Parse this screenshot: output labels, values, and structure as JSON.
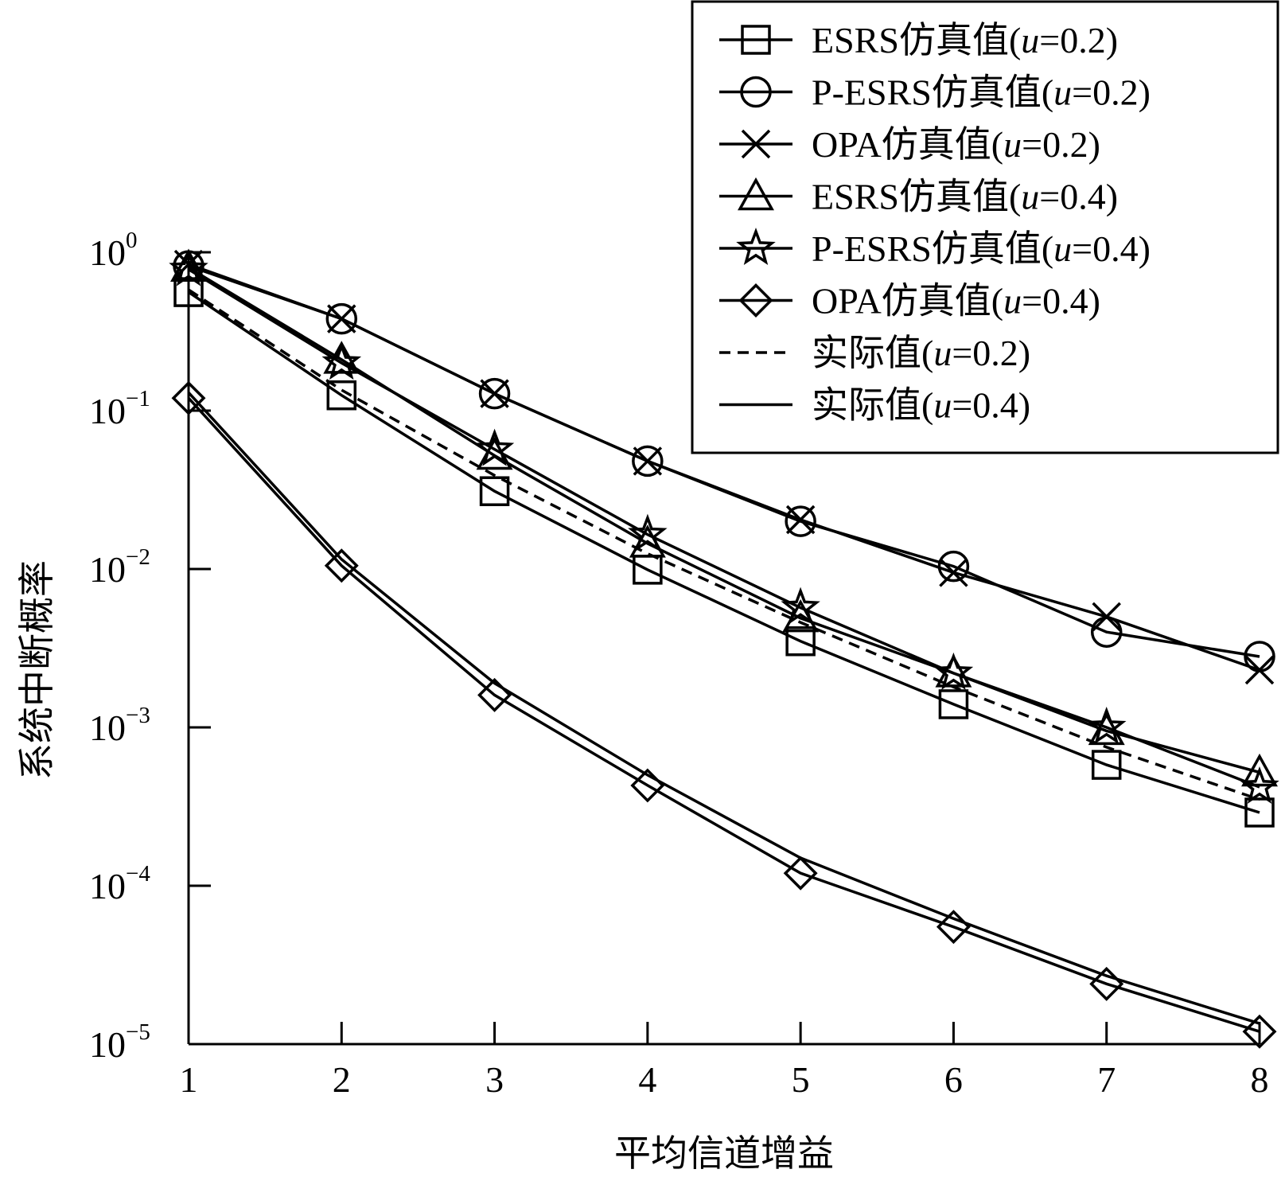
{
  "chart_data": {
    "type": "line",
    "title": "",
    "xlabel": "平均信道增益",
    "ylabel": "系统中断概率",
    "y_scale": "log",
    "xlim": [
      1,
      8
    ],
    "ylim": [
      1e-05,
      1
    ],
    "x_ticks": [
      "1",
      "2",
      "3",
      "4",
      "5",
      "6",
      "7",
      "8"
    ],
    "y_ticks": [
      {
        "value": 1,
        "base": "10",
        "exp": "0"
      },
      {
        "value": 0.1,
        "base": "10",
        "exp": "−1"
      },
      {
        "value": 0.01,
        "base": "10",
        "exp": "−2"
      },
      {
        "value": 0.001,
        "base": "10",
        "exp": "−3"
      },
      {
        "value": 0.0001,
        "base": "10",
        "exp": "−4"
      },
      {
        "value": 1e-05,
        "base": "10",
        "exp": "−5"
      }
    ],
    "grid": false,
    "legend_position": "top-right",
    "x": [
      1,
      2,
      3,
      4,
      5,
      6,
      7,
      8
    ],
    "series": [
      {
        "name": "ESRS仿真值",
        "param": "(u=0.2)",
        "marker": "square",
        "line": "solid",
        "values": [
          0.56,
          0.125,
          0.031,
          0.0099,
          0.0035,
          0.0014,
          0.00058,
          0.00029
        ]
      },
      {
        "name": "P-ESRS仿真值",
        "param": "(u=0.2)",
        "marker": "circle",
        "line": "solid",
        "values": [
          0.82,
          0.38,
          0.128,
          0.048,
          0.02,
          0.0104,
          0.004,
          0.0028
        ]
      },
      {
        "name": "OPA仿真值",
        "param": "(u=0.2)",
        "marker": "x",
        "line": "solid",
        "values": [
          0.84,
          0.38,
          0.128,
          0.048,
          0.0205,
          0.0095,
          0.005,
          0.0023
        ]
      },
      {
        "name": "ESRS仿真值",
        "param": "(u=0.4)",
        "marker": "triangle",
        "line": "solid",
        "values": [
          0.8,
          0.21,
          0.052,
          0.0145,
          0.0049,
          0.0022,
          0.00095,
          0.00052
        ]
      },
      {
        "name": "P-ESRS仿真值",
        "param": "(u=0.4)",
        "marker": "star",
        "line": "solid",
        "values": [
          0.78,
          0.2,
          0.057,
          0.0165,
          0.0057,
          0.0022,
          0.001,
          0.00042
        ]
      },
      {
        "name": "OPA仿真值",
        "param": "(u=0.4)",
        "marker": "diamond",
        "line": "solid",
        "values": [
          0.12,
          0.0105,
          0.0016,
          0.00043,
          0.00012,
          5.5e-05,
          2.4e-05,
          1.2e-05
        ]
      },
      {
        "name": "实际值",
        "param": "(u=0.2)",
        "marker": "none",
        "line": "dashed",
        "values": [
          0.58,
          0.135,
          0.039,
          0.0125,
          0.0046,
          0.0018,
          0.00075,
          0.00035
        ]
      },
      {
        "name": "实际值",
        "param": "(u=0.4)",
        "marker": "none",
        "line": "solid",
        "values": [
          0.13,
          0.0115,
          0.0019,
          0.0005,
          0.00015,
          6.2e-05,
          2.7e-05,
          1.35e-05
        ]
      }
    ]
  }
}
